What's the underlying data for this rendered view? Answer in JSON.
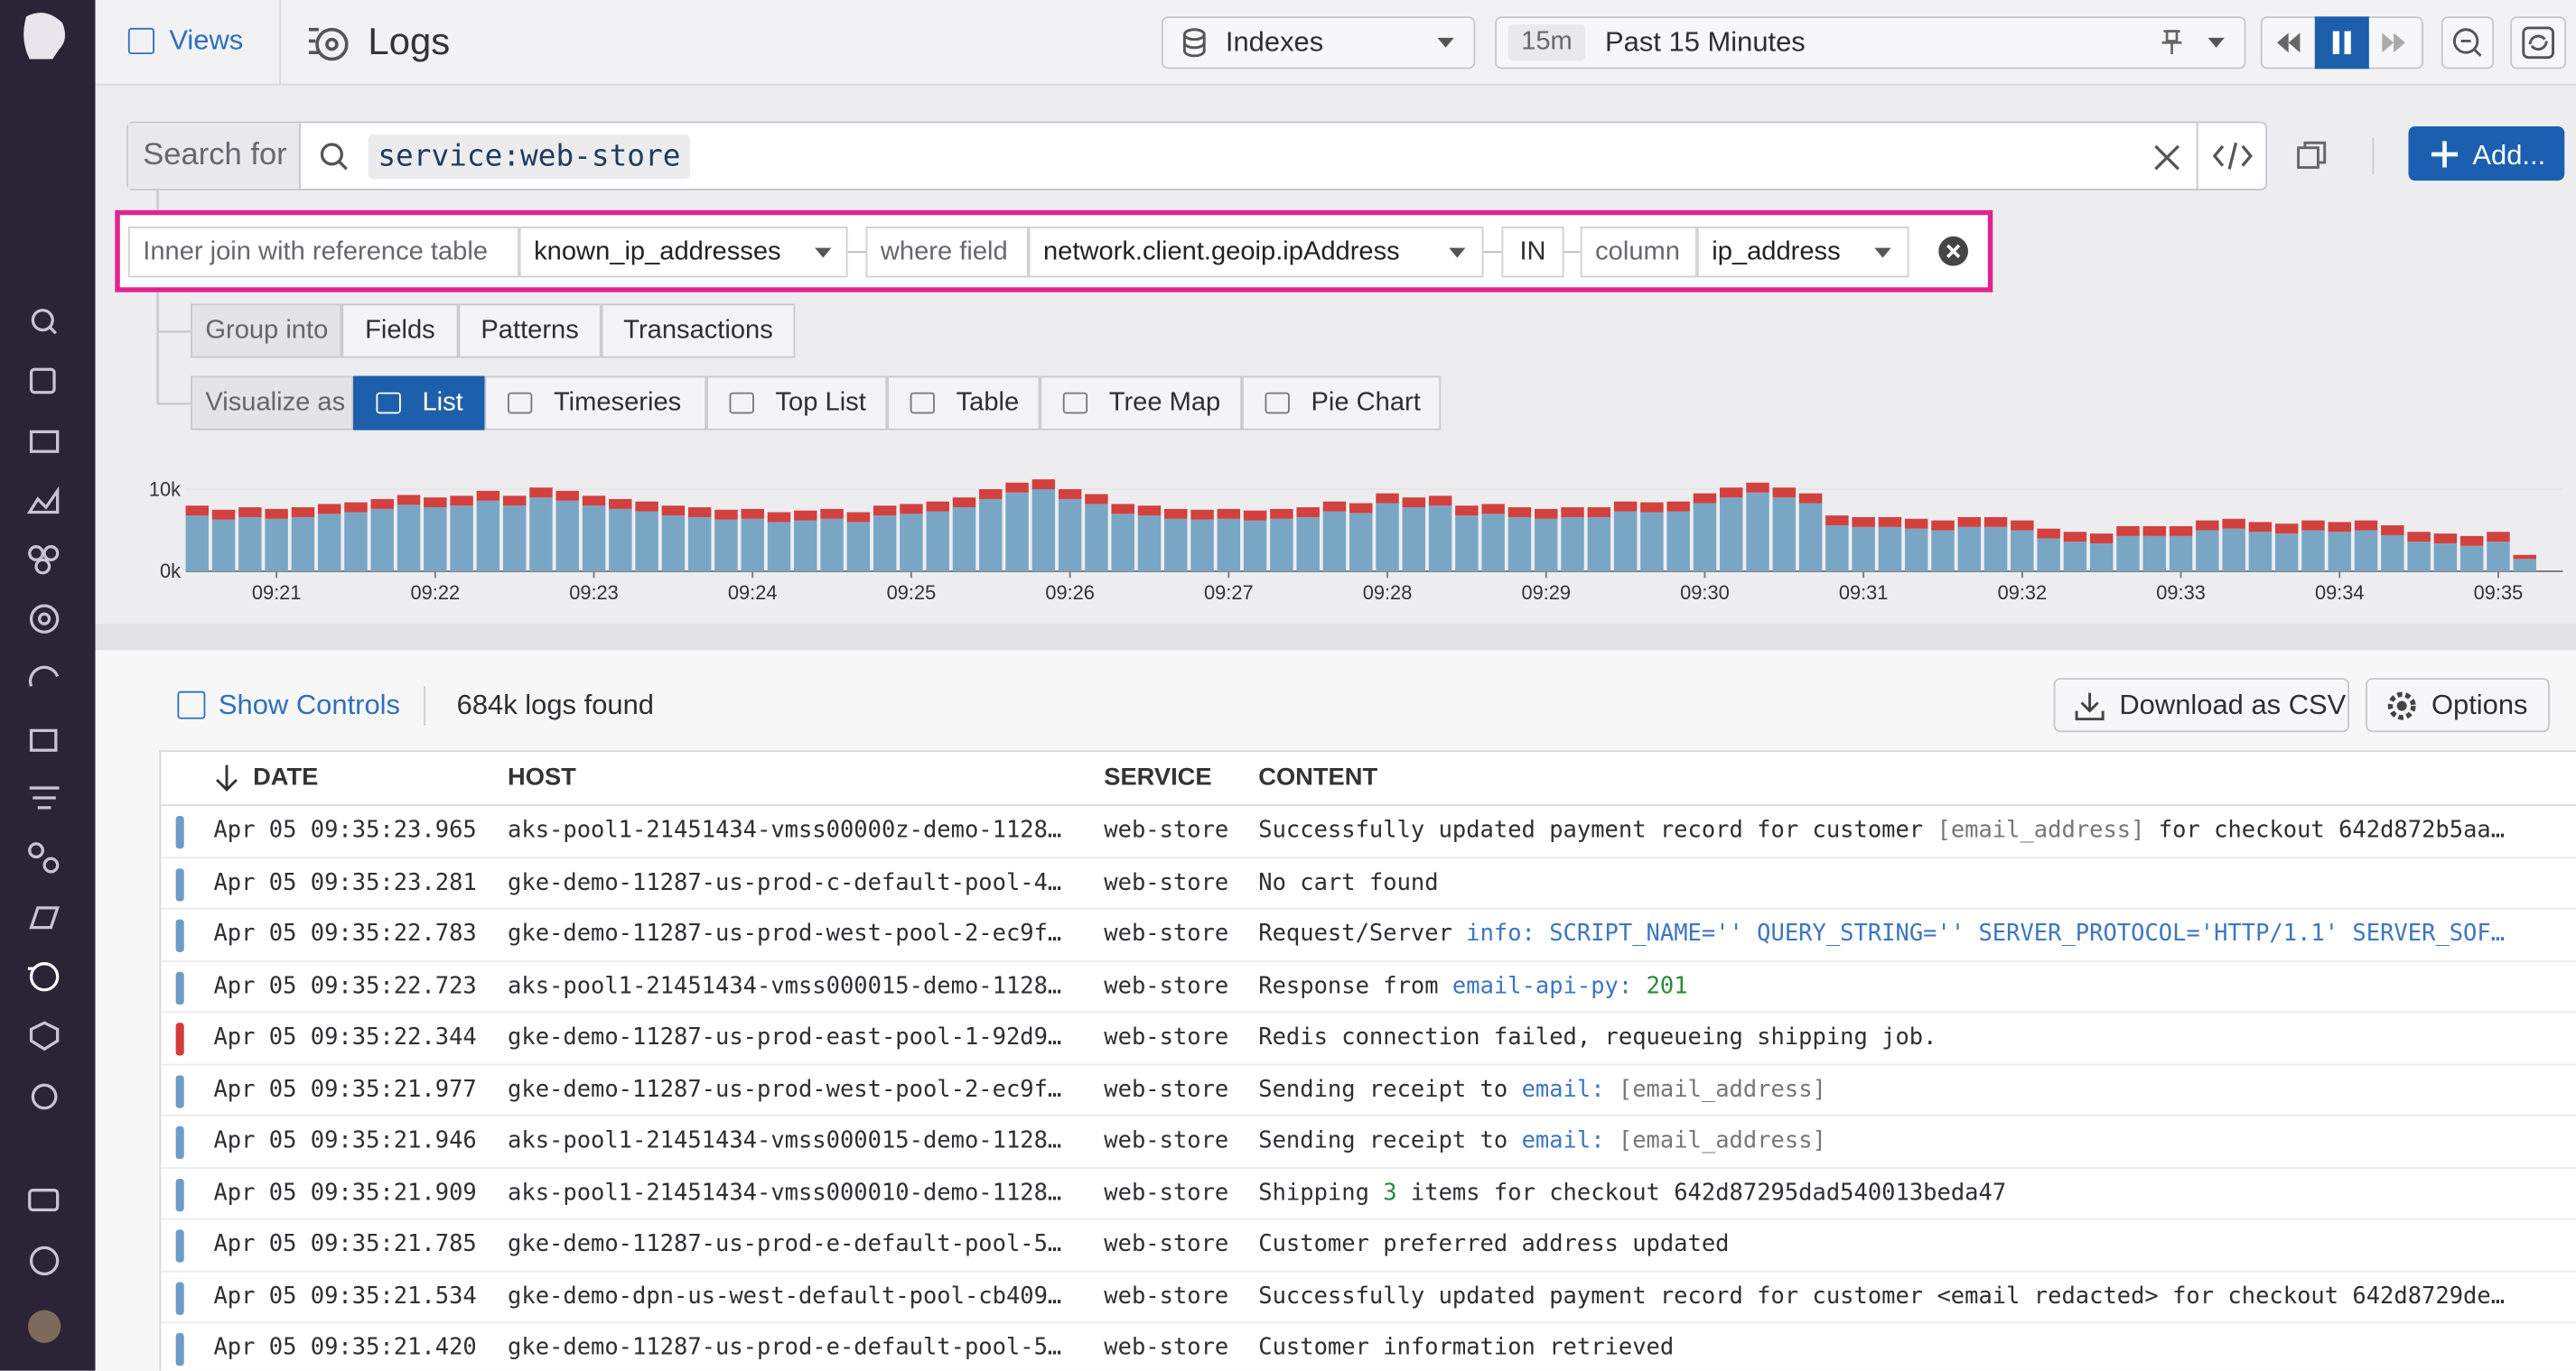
{
  "nav": {
    "views": "Views",
    "title": "Logs",
    "indexes": "Indexes",
    "time_badge": "15m",
    "time_range": "Past 15 Minutes",
    "add": "Add..."
  },
  "search": {
    "label": "Search for",
    "query": "service:web-store"
  },
  "join": {
    "label": "Inner join with reference table",
    "table": "known_ip_addresses",
    "where_label": "where field",
    "field": "network.client.geoip.ipAddress",
    "operator": "IN",
    "column_label": "column",
    "column": "ip_address"
  },
  "group": {
    "label": "Group into",
    "options": [
      "Fields",
      "Patterns",
      "Transactions"
    ]
  },
  "visualize": {
    "label": "Visualize as",
    "options": [
      "List",
      "Timeseries",
      "Top List",
      "Table",
      "Tree Map",
      "Pie Chart"
    ]
  },
  "chart_data": {
    "type": "stacked-bar",
    "categories": [
      null,
      null,
      null,
      "09:21",
      null,
      null,
      null,
      null,
      null,
      "09:22",
      null,
      null,
      null,
      null,
      null,
      "09:23",
      null,
      null,
      null,
      null,
      null,
      "09:24",
      null,
      null,
      null,
      null,
      null,
      "09:25",
      null,
      null,
      null,
      null,
      null,
      "09:26",
      null,
      null,
      null,
      null,
      null,
      "09:27",
      null,
      null,
      null,
      null,
      null,
      "09:28",
      null,
      null,
      null,
      null,
      null,
      "09:29",
      null,
      null,
      null,
      null,
      null,
      "09:30",
      null,
      null,
      null,
      null,
      null,
      "09:31",
      null,
      null,
      null,
      null,
      null,
      "09:32",
      null,
      null,
      null,
      null,
      null,
      "09:33",
      null,
      null,
      null,
      null,
      null,
      "09:34",
      null,
      null,
      null,
      null,
      null,
      "09:35",
      null
    ],
    "series": [
      {
        "color": "#7aa6c6",
        "values": [
          6800,
          6300,
          6600,
          6400,
          6600,
          7000,
          7200,
          7600,
          8100,
          7800,
          8000,
          8600,
          8000,
          9000,
          8600,
          8000,
          7600,
          7300,
          6800,
          6600,
          6300,
          6400,
          6000,
          6200,
          6400,
          6000,
          6800,
          7000,
          7300,
          7800,
          8800,
          9600,
          10000,
          8800,
          8200,
          7000,
          6800,
          6400,
          6300,
          6400,
          6200,
          6400,
          6600,
          7300,
          7100,
          8300,
          7800,
          8000,
          6800,
          7000,
          6600,
          6400,
          6600,
          6600,
          7300,
          7200,
          7300,
          8300,
          9000,
          9600,
          9000,
          8300,
          5600,
          5400,
          5400,
          5200,
          5000,
          5400,
          5400,
          5000,
          4000,
          3600,
          3400,
          4300,
          4300,
          4300,
          5000,
          5200,
          4800,
          4600,
          5000,
          4800,
          5000,
          4400,
          3600,
          3400,
          3100,
          3600,
          1500
        ]
      },
      {
        "color": "#d2413e",
        "values": [
          1200,
          1200,
          1200,
          1200,
          1200,
          1200,
          1200,
          1200,
          1200,
          1200,
          1200,
          1200,
          1200,
          1200,
          1200,
          1200,
          1200,
          1200,
          1200,
          1200,
          1200,
          1200,
          1200,
          1200,
          1200,
          1200,
          1200,
          1200,
          1200,
          1200,
          1200,
          1200,
          1200,
          1200,
          1200,
          1200,
          1200,
          1200,
          1200,
          1200,
          1200,
          1200,
          1200,
          1200,
          1200,
          1200,
          1200,
          1200,
          1200,
          1200,
          1200,
          1200,
          1200,
          1200,
          1200,
          1200,
          1200,
          1200,
          1200,
          1200,
          1200,
          1200,
          1200,
          1200,
          1200,
          1200,
          1200,
          1200,
          1200,
          1200,
          1200,
          1200,
          1200,
          1200,
          1200,
          1200,
          1200,
          1200,
          1200,
          1200,
          1200,
          1200,
          1200,
          1200,
          1200,
          1200,
          1200,
          1200,
          500
        ]
      }
    ],
    "ylim": [
      0,
      12000
    ],
    "yticks": [
      {
        "value": 0,
        "label": "0k"
      },
      {
        "value": 10000,
        "label": "10k"
      }
    ],
    "grid": true
  },
  "results": {
    "show_controls": "Show Controls",
    "count": "684k logs found",
    "download": "Download as CSV",
    "options": "Options"
  },
  "table": {
    "columns": [
      "DATE",
      "HOST",
      "SERVICE",
      "CONTENT"
    ],
    "rows": [
      {
        "color": "#6d9cc6",
        "date": "Apr 05 09:35:23.965",
        "host": "aks-pool1-21451434-vmss00000z-demo-1128…",
        "service": "web-store",
        "content": [
          {
            "text": "Successfully updated payment record for customer "
          },
          {
            "text": "[email_address]",
            "color": "#777777"
          },
          {
            "text": " for checkout 642d872b5aa…"
          }
        ]
      },
      {
        "color": "#6d9cc6",
        "date": "Apr 05 09:35:23.281",
        "host": "gke-demo-11287-us-prod-c-default-pool-4…",
        "service": "web-store",
        "content": [
          {
            "text": "No cart found"
          }
        ]
      },
      {
        "color": "#6d9cc6",
        "date": "Apr 05 09:35:22.783",
        "host": "gke-demo-11287-us-prod-west-pool-2-ec9f…",
        "service": "web-store",
        "content": [
          {
            "text": "Request/Server "
          },
          {
            "text": "info: SCRIPT_NAME='' QUERY_STRING='' SERVER_PROTOCOL='HTTP/1.1' SERVER_SOF…",
            "color": "#3d76c1"
          }
        ]
      },
      {
        "color": "#6d9cc6",
        "date": "Apr 05 09:35:22.723",
        "host": "aks-pool1-21451434-vmss000015-demo-1128…",
        "service": "web-store",
        "content": [
          {
            "text": "Response from "
          },
          {
            "text": "email-api-py:",
            "color": "#3d76c1"
          },
          {
            "text": " "
          },
          {
            "text": "201",
            "color": "#2b8a3e"
          }
        ]
      },
      {
        "color": "#d33b3b",
        "date": "Apr 05 09:35:22.344",
        "host": "gke-demo-11287-us-prod-east-pool-1-92d9…",
        "service": "web-store",
        "content": [
          {
            "text": "Redis connection failed, requeueing shipping job."
          }
        ]
      },
      {
        "color": "#6d9cc6",
        "date": "Apr 05 09:35:21.977",
        "host": "gke-demo-11287-us-prod-west-pool-2-ec9f…",
        "service": "web-store",
        "content": [
          {
            "text": "Sending receipt to "
          },
          {
            "text": "email:",
            "color": "#3d76c1"
          },
          {
            "text": " [email_address]",
            "color": "#777777"
          }
        ]
      },
      {
        "color": "#6d9cc6",
        "date": "Apr 05 09:35:21.946",
        "host": "aks-pool1-21451434-vmss000015-demo-1128…",
        "service": "web-store",
        "content": [
          {
            "text": "Sending receipt to "
          },
          {
            "text": "email:",
            "color": "#3d76c1"
          },
          {
            "text": " [email_address]",
            "color": "#777777"
          }
        ]
      },
      {
        "color": "#6d9cc6",
        "date": "Apr 05 09:35:21.909",
        "host": "aks-pool1-21451434-vmss000010-demo-1128…",
        "service": "web-store",
        "content": [
          {
            "text": "Shipping "
          },
          {
            "text": "3",
            "color": "#2b8a3e"
          },
          {
            "text": " items for checkout 642d87295dad540013beda47"
          }
        ]
      },
      {
        "color": "#6d9cc6",
        "date": "Apr 05 09:35:21.785",
        "host": "gke-demo-11287-us-prod-e-default-pool-5…",
        "service": "web-store",
        "content": [
          {
            "text": "Customer preferred address updated"
          }
        ]
      },
      {
        "color": "#6d9cc6",
        "date": "Apr 05 09:35:21.534",
        "host": "gke-demo-dpn-us-west-default-pool-cb409…",
        "service": "web-store",
        "content": [
          {
            "text": "Successfully updated payment record for customer <email redacted> for checkout 642d8729de…"
          }
        ]
      },
      {
        "color": "#6d9cc6",
        "date": "Apr 05 09:35:21.420",
        "host": "gke-demo-11287-us-prod-e-default-pool-5…",
        "service": "web-store",
        "content": [
          {
            "text": "Customer information retrieved"
          }
        ]
      }
    ]
  }
}
